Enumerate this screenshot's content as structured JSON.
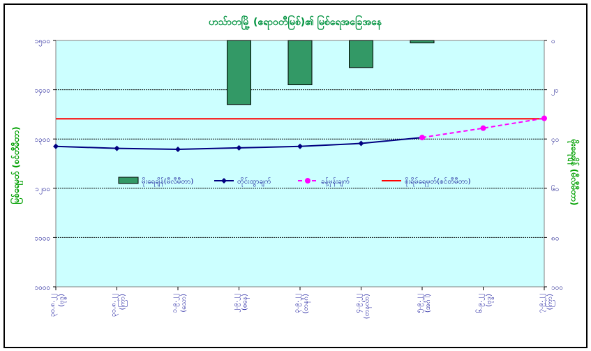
{
  "chart_data": {
    "type": "line",
    "title": "ဟသ်ာတမြို့ (ဧရာဝတီမြစ်)၏ မြစ်ရေအခြေအနေ",
    "ylabel": "မြစ်ရေမှတ် (စင်တီမီတာ)",
    "y2label": "မိုးရေချိန် (မီလီမီတာ)",
    "ylim": [
      1000,
      1500
    ],
    "y2lim": [
      0,
      100
    ],
    "y2_inverted": true,
    "yticks": [
      "၁၀၀၀",
      "၁၁၀၀",
      "၁၂၀၀",
      "၁၃၀၀",
      "၁၄၀၀",
      "၁၅၀၀"
    ],
    "y2ticks": [
      "၀",
      "၂၀",
      "၄၀",
      "၆၀",
      "၈၀",
      "၁၀၀"
    ],
    "categories": [
      [
        "၃၀.၈.၂၂",
        "(ဗုဒ္ဓ)"
      ],
      [
        "၃၁.၈.၂၂",
        "(ကြာ)"
      ],
      [
        "၁.၉.၂၂",
        "(သော)"
      ],
      [
        "၂.၉.၂၂",
        "(စနေ)"
      ],
      [
        "၃.၉.၂၂",
        "(တနင်္ဂ)"
      ],
      [
        "၄.၉.၂၂",
        "(တနင်္လာ)"
      ],
      [
        "၅.၉.၂၂",
        "(အင်္ဂါ)"
      ],
      [
        "၆.၉.၂၂",
        "(ဗုဒ္ဓ)"
      ],
      [
        "၇.၉.၂၂",
        "(ကြာ)"
      ]
    ],
    "series": [
      {
        "name": "မိုးရေချိန်(မီလီမီတာ)",
        "kind": "bar",
        "axis": "right",
        "color": "#339966",
        "values": [
          null,
          null,
          null,
          26,
          18,
          11,
          1,
          null,
          null
        ]
      },
      {
        "name": "တိုင်းထွာချက်",
        "kind": "line",
        "axis": "left",
        "color": "#000080",
        "values": [
          1285,
          1281,
          1279,
          1282,
          1285,
          1291,
          1303,
          null,
          null
        ]
      },
      {
        "name": "ခန့်မှန်းချက်",
        "kind": "line-dashed",
        "axis": "left",
        "color": "#ff00ff",
        "values": [
          null,
          null,
          null,
          null,
          null,
          null,
          1303,
          1322,
          1342
        ]
      },
      {
        "name": "စိုးရိမ်ရေမှတ်(စင်တီမီတာ)",
        "kind": "hline",
        "axis": "left",
        "color": "#ff0000",
        "value": 1341
      }
    ],
    "grid": true,
    "legend": "center-left"
  },
  "colors": {
    "plot_bg": "#ccffff",
    "title": "#00923f",
    "axis_label": "#00a000"
  }
}
